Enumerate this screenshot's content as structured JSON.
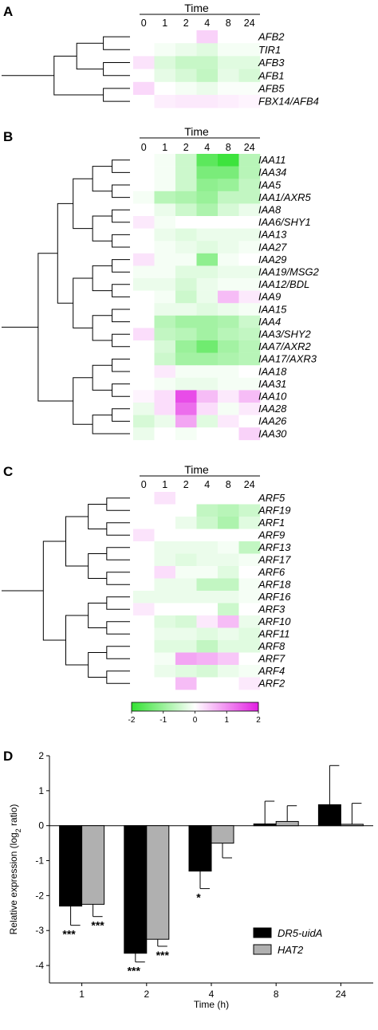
{
  "panels": [
    {
      "label": "A",
      "time_title": "Time",
      "time_points": [
        "0",
        "1",
        "2",
        "4",
        "8",
        "24"
      ],
      "genes": [
        "AFB2",
        "TIR1",
        "AFB3",
        "AFB1",
        "AFB5",
        "FBX14/AFB4"
      ],
      "values": [
        [
          0,
          0,
          0,
          0.4,
          0,
          0
        ],
        [
          0,
          -0.1,
          -0.2,
          -0.3,
          -0.1,
          -0.1
        ],
        [
          0.25,
          -0.35,
          -0.55,
          -0.55,
          -0.3,
          -0.3
        ],
        [
          0,
          -0.25,
          -0.4,
          -0.6,
          -0.25,
          -0.4
        ],
        [
          0.35,
          0,
          -0.1,
          -0.2,
          -0.05,
          -0.05
        ],
        [
          0,
          0.15,
          0.2,
          0.2,
          0.15,
          0.1
        ]
      ]
    },
    {
      "label": "B",
      "time_title": "Time",
      "time_points": [
        "0",
        "1",
        "2",
        "4",
        "8",
        "24"
      ],
      "genes": [
        "IAA11",
        "IAA34",
        "IAA5",
        "IAA1/AXR5",
        "IAA8",
        "IAA6/SHY1",
        "IAA13",
        "IAA27",
        "IAA29",
        "IAA19/MSG2",
        "IAA12/BDL",
        "IAA9",
        "IAA15",
        "IAA4",
        "IAA3/SHY2",
        "IAA7/AXR2",
        "IAA17/AXR3",
        "IAA18",
        "IAA31",
        "IAA10",
        "IAA28",
        "IAA26",
        "IAA30"
      ],
      "values": [
        [
          0,
          -0.1,
          -0.5,
          -1.6,
          -1.9,
          -0.7
        ],
        [
          0,
          -0.1,
          -0.5,
          -1.3,
          -1.3,
          -0.7
        ],
        [
          0,
          -0.1,
          -0.5,
          -1.1,
          -1.0,
          -0.6
        ],
        [
          -0.1,
          -0.7,
          -0.8,
          -1.0,
          -0.6,
          -0.6
        ],
        [
          0,
          -0.2,
          -0.5,
          -0.8,
          -0.4,
          -0.2
        ],
        [
          0.2,
          -0.1,
          0,
          0,
          0,
          0
        ],
        [
          0,
          -0.2,
          -0.3,
          -0.2,
          -0.2,
          -0.2
        ],
        [
          0,
          -0.1,
          -0.2,
          -0.3,
          -0.2,
          -0.1
        ],
        [
          0.25,
          -0.1,
          -0.1,
          -1.1,
          -0.1,
          0
        ],
        [
          -0.1,
          -0.1,
          -0.3,
          -0.3,
          -0.2,
          -0.2
        ],
        [
          -0.2,
          -0.2,
          -0.4,
          -0.2,
          -0.1,
          -0.1
        ],
        [
          0,
          -0.1,
          -0.5,
          -0.2,
          0.6,
          0.2
        ],
        [
          0,
          -0.2,
          -0.2,
          -0.3,
          -0.2,
          -0.1
        ],
        [
          0,
          -0.7,
          -0.9,
          -0.9,
          -0.8,
          -0.5
        ],
        [
          0.3,
          -0.6,
          -0.7,
          -0.9,
          -0.7,
          -0.6
        ],
        [
          0,
          -0.4,
          -1.0,
          -1.4,
          -0.9,
          -0.7
        ],
        [
          0,
          -0.5,
          -0.9,
          -0.9,
          -0.8,
          -0.7
        ],
        [
          0,
          0.2,
          -0.1,
          -0.1,
          -0.1,
          0
        ],
        [
          0,
          -0.1,
          -0.2,
          -0.2,
          -0.1,
          -0.1
        ],
        [
          0.1,
          0.3,
          1.6,
          0.6,
          0.2,
          0.6
        ],
        [
          -0.2,
          0.3,
          1.3,
          0.3,
          -0.1,
          0.2
        ],
        [
          -0.4,
          -0.2,
          0.8,
          -0.3,
          0.2,
          0
        ],
        [
          -0.2,
          0,
          -0.1,
          0,
          0,
          0.4
        ]
      ]
    },
    {
      "label": "C",
      "time_title": "Time",
      "time_points": [
        "0",
        "1",
        "2",
        "4",
        "8",
        "24"
      ],
      "genes": [
        "ARF5",
        "ARF19",
        "ARF1",
        "ARF9",
        "ARF13",
        "ARF17",
        "ARF6",
        "ARF18",
        "ARF16",
        "ARF3",
        "ARF10",
        "ARF11",
        "ARF8",
        "ARF7",
        "ARF4",
        "ARF2"
      ],
      "values": [
        [
          0,
          0.25,
          0,
          0,
          0,
          0
        ],
        [
          0,
          0,
          0,
          -0.6,
          -0.7,
          -0.5
        ],
        [
          0,
          0,
          -0.2,
          -0.5,
          -0.8,
          -0.3
        ],
        [
          0.25,
          0,
          0,
          0,
          0,
          0
        ],
        [
          0,
          -0.2,
          -0.2,
          -0.2,
          -0.1,
          -0.6
        ],
        [
          0,
          -0.2,
          -0.3,
          -0.2,
          -0.2,
          -0.1
        ],
        [
          0,
          0.3,
          -0.1,
          -0.1,
          -0.3,
          0
        ],
        [
          0,
          -0.2,
          -0.2,
          -0.6,
          -0.6,
          -0.1
        ],
        [
          -0.2,
          -0.2,
          -0.2,
          -0.2,
          -0.2,
          -0.1
        ],
        [
          0.2,
          0,
          0,
          0,
          -0.5,
          0
        ],
        [
          0,
          -0.3,
          -0.4,
          0.2,
          0.6,
          -0.2
        ],
        [
          0,
          -0.2,
          -0.2,
          -0.3,
          -0.2,
          -0.3
        ],
        [
          0,
          -0.3,
          -0.3,
          -0.6,
          -0.3,
          -0.3
        ],
        [
          0,
          -0.1,
          0.8,
          0.7,
          0.5,
          0
        ],
        [
          0,
          -0.2,
          -0.3,
          -0.4,
          -0.2,
          -0.1
        ],
        [
          0,
          0,
          0.6,
          0,
          0,
          0.2
        ]
      ]
    }
  ],
  "colorbar": {
    "ticks": [
      "-2",
      "-1",
      "0",
      "1",
      "2"
    ],
    "min": -2,
    "max": 2,
    "colors": {
      "neg": "#33e233",
      "mid": "#ffffff",
      "pos": "#e21fe2"
    }
  },
  "chart_data": {
    "type": "bar",
    "panel_label": "D",
    "title": "",
    "categories": [
      "1",
      "2",
      "4",
      "8",
      "24"
    ],
    "xlabel": "Time (h)",
    "ylabel_main": "Relative expression (log",
    "ylabel_sub": "2",
    "ylabel_tail": " ratio)",
    "ylim": [
      -4.5,
      2
    ],
    "yticks": [
      "-4",
      "-3",
      "-2",
      "-1",
      "0",
      "1",
      "2"
    ],
    "legend_position": "bottom-right",
    "series": [
      {
        "name": "DR5-uidA",
        "color": "#000000",
        "values": [
          -2.3,
          -3.65,
          -1.3,
          0.05,
          0.6
        ],
        "errors": [
          0.55,
          0.25,
          0.5,
          0.65,
          1.12
        ]
      },
      {
        "name": "HAT2",
        "color": "#b0b0b0",
        "values": [
          -2.25,
          -3.25,
          -0.5,
          0.12,
          0.04
        ],
        "errors": [
          0.35,
          0.2,
          0.42,
          0.45,
          0.6
        ]
      }
    ],
    "significance": [
      [
        "***",
        "***",
        "*",
        "",
        ""
      ],
      [
        "***",
        "***",
        "",
        "",
        ""
      ]
    ]
  }
}
